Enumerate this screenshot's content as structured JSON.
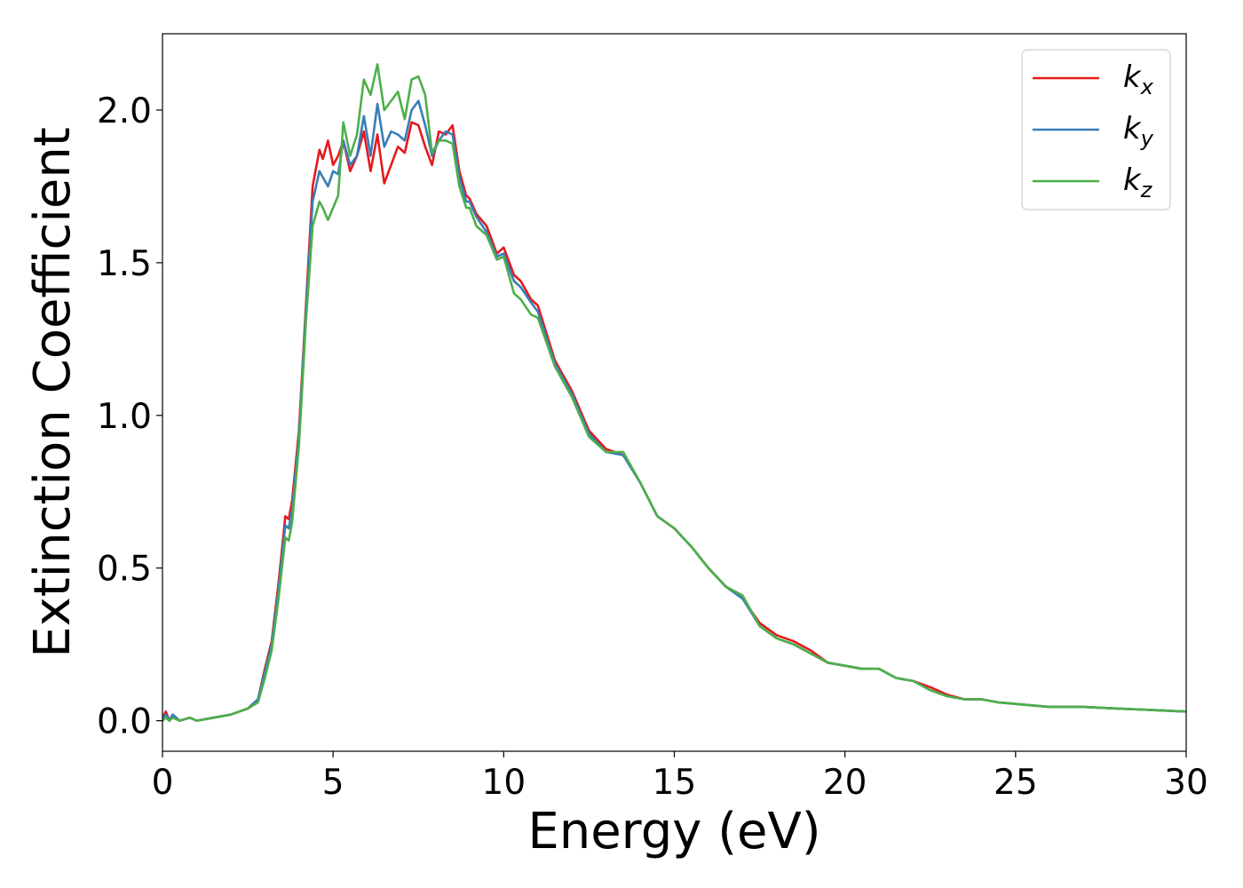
{
  "chart_data": {
    "type": "line",
    "xlabel": "Energy (eV)",
    "ylabel": "Extinction Coefficient",
    "xlim": [
      0,
      30
    ],
    "ylim": [
      -0.1,
      2.25
    ],
    "xticks": [
      0,
      5,
      10,
      15,
      20,
      25,
      30
    ],
    "xtick_labels": [
      "0",
      "5",
      "10",
      "15",
      "20",
      "25",
      "30"
    ],
    "yticks": [
      0.0,
      0.5,
      1.0,
      1.5,
      2.0
    ],
    "ytick_labels": [
      "0.0",
      "0.5",
      "1.0",
      "1.5",
      "2.0"
    ],
    "grid": false,
    "legend_position": "top-right",
    "series": [
      {
        "name": "k_x",
        "label_main": "k",
        "label_sub": "x",
        "color": "#e41a1c",
        "x": [
          0,
          0.1,
          0.2,
          0.3,
          0.5,
          0.8,
          1.0,
          1.5,
          2.0,
          2.5,
          2.8,
          3.0,
          3.2,
          3.4,
          3.6,
          3.7,
          3.8,
          4.0,
          4.2,
          4.4,
          4.6,
          4.7,
          4.85,
          5.0,
          5.15,
          5.3,
          5.5,
          5.7,
          5.9,
          6.1,
          6.3,
          6.5,
          6.7,
          6.9,
          7.1,
          7.3,
          7.5,
          7.7,
          7.9,
          8.1,
          8.3,
          8.5,
          8.7,
          8.9,
          9.0,
          9.2,
          9.5,
          9.8,
          10.0,
          10.3,
          10.5,
          10.8,
          11.0,
          11.5,
          12.0,
          12.5,
          13.0,
          13.5,
          14.0,
          14.5,
          15.0,
          15.5,
          16.0,
          16.5,
          17.0,
          17.5,
          18.0,
          18.5,
          19.0,
          19.5,
          20.0,
          20.5,
          21.0,
          21.5,
          22.0,
          22.5,
          23.0,
          23.5,
          24.0,
          24.5,
          25.0,
          25.5,
          26.0,
          27.0,
          28.0,
          29.0,
          30.0
        ],
        "y": [
          0.01,
          0.03,
          0.0,
          0.02,
          0.0,
          0.01,
          0.0,
          0.01,
          0.02,
          0.04,
          0.07,
          0.17,
          0.26,
          0.45,
          0.67,
          0.66,
          0.72,
          0.95,
          1.35,
          1.75,
          1.87,
          1.84,
          1.9,
          1.82,
          1.85,
          1.9,
          1.8,
          1.85,
          1.93,
          1.8,
          1.92,
          1.76,
          1.82,
          1.88,
          1.86,
          1.96,
          1.95,
          1.88,
          1.82,
          1.93,
          1.92,
          1.95,
          1.8,
          1.72,
          1.71,
          1.66,
          1.62,
          1.53,
          1.55,
          1.46,
          1.44,
          1.38,
          1.36,
          1.18,
          1.08,
          0.95,
          0.89,
          0.87,
          0.78,
          0.67,
          0.63,
          0.57,
          0.5,
          0.44,
          0.4,
          0.32,
          0.28,
          0.26,
          0.23,
          0.19,
          0.18,
          0.17,
          0.17,
          0.14,
          0.13,
          0.11,
          0.085,
          0.07,
          0.07,
          0.06,
          0.055,
          0.05,
          0.045,
          0.045,
          0.04,
          0.035,
          0.03
        ]
      },
      {
        "name": "k_y",
        "label_main": "k",
        "label_sub": "y",
        "color": "#377eb8",
        "x": [
          0,
          0.1,
          0.2,
          0.3,
          0.5,
          0.8,
          1.0,
          1.5,
          2.0,
          2.5,
          2.8,
          3.0,
          3.2,
          3.4,
          3.6,
          3.7,
          3.8,
          4.0,
          4.2,
          4.4,
          4.6,
          4.7,
          4.85,
          5.0,
          5.15,
          5.3,
          5.5,
          5.7,
          5.9,
          6.1,
          6.3,
          6.5,
          6.7,
          6.9,
          7.1,
          7.3,
          7.5,
          7.7,
          7.9,
          8.1,
          8.3,
          8.5,
          8.7,
          8.9,
          9.0,
          9.2,
          9.5,
          9.8,
          10.0,
          10.3,
          10.5,
          10.8,
          11.0,
          11.5,
          12.0,
          12.5,
          13.0,
          13.5,
          14.0,
          14.5,
          15.0,
          15.5,
          16.0,
          16.5,
          17.0,
          17.5,
          18.0,
          18.5,
          19.0,
          19.5,
          20.0,
          20.5,
          21.0,
          21.5,
          22.0,
          22.5,
          23.0,
          23.5,
          24.0,
          24.5,
          25.0,
          25.5,
          26.0,
          27.0,
          28.0,
          29.0,
          30.0
        ],
        "y": [
          0.01,
          0.02,
          0.0,
          0.02,
          0.0,
          0.01,
          0.0,
          0.01,
          0.02,
          0.04,
          0.07,
          0.16,
          0.25,
          0.43,
          0.64,
          0.63,
          0.69,
          0.93,
          1.33,
          1.7,
          1.8,
          1.78,
          1.75,
          1.8,
          1.79,
          1.9,
          1.82,
          1.85,
          1.98,
          1.85,
          2.02,
          1.88,
          1.93,
          1.92,
          1.9,
          2.0,
          2.03,
          1.95,
          1.85,
          1.9,
          1.93,
          1.92,
          1.78,
          1.7,
          1.7,
          1.65,
          1.6,
          1.52,
          1.53,
          1.44,
          1.42,
          1.37,
          1.34,
          1.17,
          1.07,
          0.94,
          0.88,
          0.87,
          0.78,
          0.67,
          0.63,
          0.57,
          0.5,
          0.44,
          0.4,
          0.31,
          0.27,
          0.25,
          0.22,
          0.19,
          0.18,
          0.17,
          0.17,
          0.14,
          0.13,
          0.1,
          0.08,
          0.07,
          0.07,
          0.06,
          0.055,
          0.05,
          0.045,
          0.045,
          0.04,
          0.035,
          0.03
        ]
      },
      {
        "name": "k_z",
        "label_main": "k",
        "label_sub": "z",
        "color": "#4daf4a",
        "x": [
          0,
          0.1,
          0.2,
          0.3,
          0.5,
          0.8,
          1.0,
          1.5,
          2.0,
          2.5,
          2.8,
          3.0,
          3.2,
          3.4,
          3.6,
          3.7,
          3.8,
          4.0,
          4.2,
          4.4,
          4.6,
          4.7,
          4.85,
          5.0,
          5.15,
          5.3,
          5.5,
          5.7,
          5.9,
          6.1,
          6.3,
          6.5,
          6.7,
          6.9,
          7.1,
          7.3,
          7.5,
          7.7,
          7.9,
          8.1,
          8.3,
          8.5,
          8.7,
          8.9,
          9.0,
          9.2,
          9.5,
          9.8,
          10.0,
          10.3,
          10.5,
          10.8,
          11.0,
          11.5,
          12.0,
          12.5,
          13.0,
          13.5,
          14.0,
          14.5,
          15.0,
          15.5,
          16.0,
          16.5,
          17.0,
          17.5,
          18.0,
          18.5,
          19.0,
          19.5,
          20.0,
          20.5,
          21.0,
          21.5,
          22.0,
          22.5,
          23.0,
          23.5,
          24.0,
          24.5,
          25.0,
          25.5,
          26.0,
          27.0,
          28.0,
          29.0,
          30.0
        ],
        "y": [
          0.0,
          0.01,
          0.0,
          0.01,
          0.0,
          0.01,
          0.0,
          0.01,
          0.02,
          0.04,
          0.06,
          0.14,
          0.23,
          0.4,
          0.6,
          0.59,
          0.65,
          0.9,
          1.3,
          1.62,
          1.7,
          1.68,
          1.64,
          1.68,
          1.72,
          1.96,
          1.85,
          1.92,
          2.1,
          2.05,
          2.15,
          2.0,
          2.03,
          2.06,
          1.97,
          2.1,
          2.11,
          2.05,
          1.86,
          1.9,
          1.9,
          1.89,
          1.75,
          1.68,
          1.68,
          1.62,
          1.59,
          1.51,
          1.52,
          1.4,
          1.38,
          1.33,
          1.32,
          1.16,
          1.06,
          0.93,
          0.88,
          0.88,
          0.78,
          0.67,
          0.63,
          0.57,
          0.5,
          0.44,
          0.41,
          0.31,
          0.27,
          0.25,
          0.22,
          0.19,
          0.18,
          0.17,
          0.17,
          0.14,
          0.13,
          0.1,
          0.08,
          0.07,
          0.07,
          0.06,
          0.055,
          0.05,
          0.045,
          0.045,
          0.04,
          0.035,
          0.03
        ]
      }
    ]
  }
}
